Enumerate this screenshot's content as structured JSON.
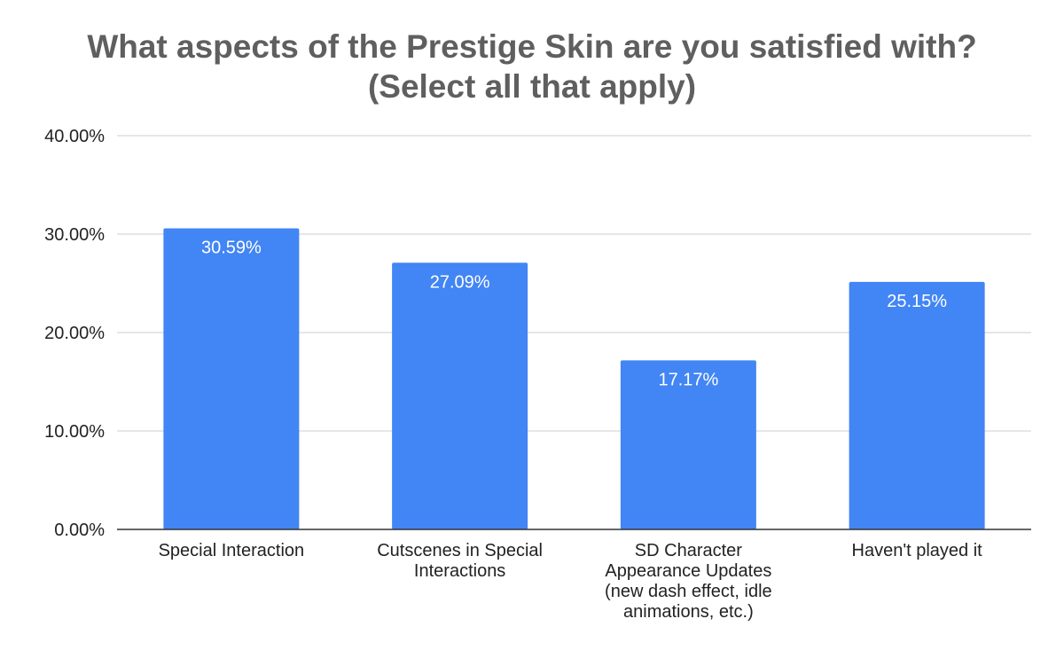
{
  "chart_data": {
    "type": "bar",
    "title_lines": [
      "What aspects of the Prestige Skin are you satisfied with?",
      "(Select all that apply)"
    ],
    "categories": [
      [
        "Special Interaction"
      ],
      [
        "Cutscenes in Special",
        "Interactions"
      ],
      [
        "SD Character",
        "Appearance Updates",
        "(new dash effect, idle",
        "animations, etc.)"
      ],
      [
        "Haven't played it"
      ]
    ],
    "values": [
      30.59,
      27.09,
      17.17,
      25.15
    ],
    "data_labels": [
      "30.59%",
      "27.09%",
      "17.17%",
      "25.15%"
    ],
    "y_ticks": [
      {
        "value": 0,
        "label": "0.00%"
      },
      {
        "value": 10,
        "label": "10.00%"
      },
      {
        "value": 20,
        "label": "20.00%"
      },
      {
        "value": 30,
        "label": "30.00%"
      },
      {
        "value": 40,
        "label": "40.00%"
      }
    ],
    "ylim": [
      0,
      40
    ],
    "grid": true,
    "legend": "none",
    "bar_color": "#4285f4"
  }
}
